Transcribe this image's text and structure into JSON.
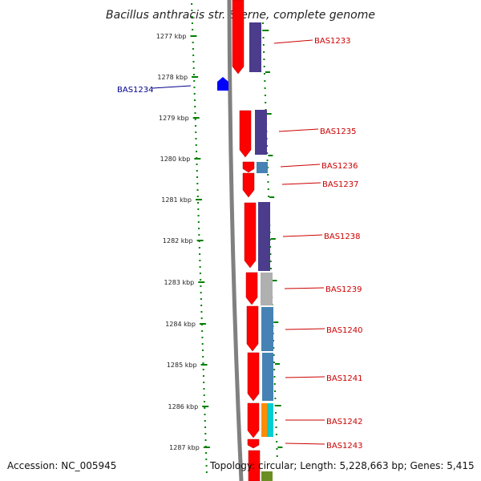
{
  "title": "Bacillus anthracis str. Sterne, complete genome",
  "footer": {
    "accession": "Accession: NC_005945",
    "topology": "Topology: circular; Length: 5,228,663 bp; Genes: 5,415"
  },
  "colors": {
    "ruler": "#008000",
    "backbone": "#808080",
    "cds": "#ff0000",
    "reverse_gene": "#0000ff",
    "label_forward": "#cc0000",
    "label_reverse": "#00008b",
    "cog_purple": "#4b3c8c",
    "cog_steel": "#4682b4",
    "cog_gray": "#b0b0b0",
    "cog_orange": "#ff8c00",
    "cog_cyan": "#00ced1",
    "cog_olive": "#6b8e23"
  },
  "ruler_ticks": [
    {
      "label": "1277 kbp"
    },
    {
      "label": "1278 kbp"
    },
    {
      "label": "1279 kbp"
    },
    {
      "label": "1280 kbp"
    },
    {
      "label": "1281 kbp"
    },
    {
      "label": "1282 kbp"
    },
    {
      "label": "1283 kbp"
    },
    {
      "label": "1284 kbp"
    },
    {
      "label": "1285 kbp"
    },
    {
      "label": "1286 kbp"
    },
    {
      "label": "1287 kbp"
    }
  ],
  "genes": [
    {
      "label": "BAS1233",
      "strand": "forward"
    },
    {
      "label": "BAS1234",
      "strand": "reverse"
    },
    {
      "label": "BAS1235",
      "strand": "forward"
    },
    {
      "label": "BAS1236",
      "strand": "forward"
    },
    {
      "label": "BAS1237",
      "strand": "forward"
    },
    {
      "label": "BAS1238",
      "strand": "forward"
    },
    {
      "label": "BAS1239",
      "strand": "forward"
    },
    {
      "label": "BAS1240",
      "strand": "forward"
    },
    {
      "label": "BAS1241",
      "strand": "forward"
    },
    {
      "label": "BAS1242",
      "strand": "forward"
    },
    {
      "label": "BAS1243",
      "strand": "forward"
    }
  ]
}
